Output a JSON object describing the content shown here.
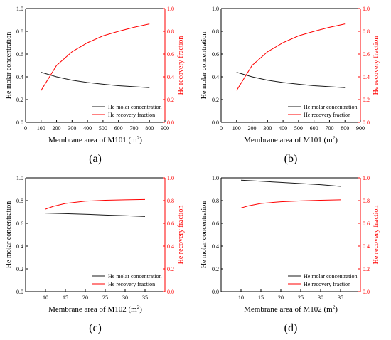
{
  "colors": {
    "left_axis": "#000000",
    "right_axis": "#ff0000",
    "series_black": "#1a1a1a",
    "series_red": "#ff0000"
  },
  "chart_data": [
    {
      "type": "line",
      "panel_label": "(a)",
      "xlabel": "Membrane area of M101",
      "xlabel_unit": "(m",
      "xlabel_sup": "2",
      "xlabel_close": ")",
      "ylabel_left": "He molar concentration",
      "ylabel_right": "He recovery fraction",
      "xlim": [
        0,
        900
      ],
      "xticks": [
        0,
        100,
        200,
        300,
        400,
        500,
        600,
        700,
        800,
        900
      ],
      "ylim_left": [
        0.0,
        1.0
      ],
      "ylim_right": [
        0.0,
        1.0
      ],
      "yticks": [
        0.0,
        0.2,
        0.4,
        0.6,
        0.8,
        1.0
      ],
      "legend_position": "lower-right",
      "series": [
        {
          "name": "He molar concentration",
          "axis": "left",
          "color": "#1a1a1a",
          "x": [
            100,
            200,
            300,
            400,
            500,
            600,
            700,
            800
          ],
          "y": [
            0.44,
            0.4,
            0.37,
            0.35,
            0.335,
            0.322,
            0.313,
            0.305
          ]
        },
        {
          "name": "He recovery fraction",
          "axis": "right",
          "color": "#ff0000",
          "x": [
            100,
            200,
            300,
            400,
            500,
            600,
            700,
            800
          ],
          "y": [
            0.28,
            0.5,
            0.62,
            0.7,
            0.76,
            0.8,
            0.835,
            0.865
          ]
        }
      ]
    },
    {
      "type": "line",
      "panel_label": "(b)",
      "xlabel": "Membrane area of M101",
      "xlabel_unit": "(m",
      "xlabel_sup": "2",
      "xlabel_close": ")",
      "ylabel_left": "He molar concentration",
      "ylabel_right": "He recovery fraction",
      "xlim": [
        0,
        900
      ],
      "xticks": [
        0,
        100,
        200,
        300,
        400,
        500,
        600,
        700,
        800,
        900
      ],
      "ylim_left": [
        0.0,
        1.0
      ],
      "ylim_right": [
        0.0,
        1.0
      ],
      "yticks": [
        0.0,
        0.2,
        0.4,
        0.6,
        0.8,
        1.0
      ],
      "legend_position": "lower-right",
      "series": [
        {
          "name": "He molar concentration",
          "axis": "left",
          "color": "#1a1a1a",
          "x": [
            100,
            200,
            300,
            400,
            500,
            600,
            700,
            800
          ],
          "y": [
            0.44,
            0.4,
            0.37,
            0.35,
            0.335,
            0.322,
            0.313,
            0.305
          ]
        },
        {
          "name": "He recovery fraction",
          "axis": "right",
          "color": "#ff0000",
          "x": [
            100,
            200,
            300,
            400,
            500,
            600,
            700,
            800
          ],
          "y": [
            0.28,
            0.5,
            0.62,
            0.7,
            0.76,
            0.8,
            0.835,
            0.865
          ]
        }
      ]
    },
    {
      "type": "line",
      "panel_label": "(c)",
      "xlabel": "Membrane area of M102",
      "xlabel_unit": "(m",
      "xlabel_sup": "2",
      "xlabel_close": ")",
      "ylabel_left": "He molar concentration",
      "ylabel_right": "He recovery fraction",
      "xlim": [
        5,
        40
      ],
      "xticks": [
        10,
        15,
        20,
        25,
        30,
        35
      ],
      "ylim_left": [
        0.0,
        1.0
      ],
      "ylim_right": [
        0.0,
        1.0
      ],
      "yticks": [
        0.0,
        0.2,
        0.4,
        0.6,
        0.8,
        1.0
      ],
      "legend_position": "lower-right",
      "series": [
        {
          "name": "He molar concentration",
          "axis": "left",
          "color": "#1a1a1a",
          "x": [
            10,
            15,
            20,
            25,
            30,
            35
          ],
          "y": [
            0.69,
            0.685,
            0.68,
            0.673,
            0.667,
            0.66
          ]
        },
        {
          "name": "He recovery fraction",
          "axis": "right",
          "color": "#ff0000",
          "x": [
            10,
            12,
            15,
            20,
            25,
            30,
            35
          ],
          "y": [
            0.725,
            0.75,
            0.775,
            0.795,
            0.803,
            0.807,
            0.81
          ]
        }
      ]
    },
    {
      "type": "line",
      "panel_label": "(d)",
      "xlabel": "Membrane area of M102",
      "xlabel_unit": "(m",
      "xlabel_sup": "2",
      "xlabel_close": ")",
      "ylabel_left": "He molar concentration",
      "ylabel_right": "He recovery fraction",
      "xlim": [
        5,
        40
      ],
      "xticks": [
        10,
        15,
        20,
        25,
        30,
        35
      ],
      "ylim_left": [
        0.0,
        1.0
      ],
      "ylim_right": [
        0.0,
        1.0
      ],
      "yticks": [
        0.0,
        0.2,
        0.4,
        0.6,
        0.8,
        1.0
      ],
      "legend_position": "lower-right",
      "series": [
        {
          "name": "He molar concentration",
          "axis": "left",
          "color": "#1a1a1a",
          "x": [
            10,
            15,
            20,
            25,
            30,
            35
          ],
          "y": [
            0.98,
            0.97,
            0.96,
            0.95,
            0.94,
            0.925
          ]
        },
        {
          "name": "He recovery fraction",
          "axis": "right",
          "color": "#ff0000",
          "x": [
            10,
            12,
            15,
            20,
            25,
            30,
            35
          ],
          "y": [
            0.735,
            0.755,
            0.775,
            0.79,
            0.798,
            0.803,
            0.807
          ]
        }
      ]
    }
  ]
}
